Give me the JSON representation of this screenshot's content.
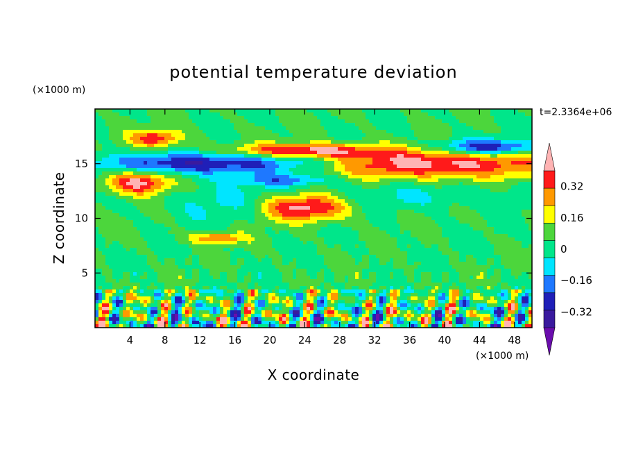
{
  "chart_data": {
    "type": "heatmap",
    "title": "potential temperature deviation",
    "xlabel": "X coordinate",
    "ylabel": "Z coordinate",
    "x_unit": "(×1000 m)",
    "y_unit": "(×1000 m)",
    "time_label": "t=2.3364e+06",
    "xlim": [
      0,
      50
    ],
    "ylim": [
      0,
      20
    ],
    "x_ticks": [
      4,
      8,
      12,
      16,
      20,
      24,
      28,
      32,
      36,
      40,
      44,
      48
    ],
    "y_ticks": [
      5,
      10,
      15
    ],
    "colorbar": {
      "levels": [
        -0.4,
        -0.32,
        -0.24,
        -0.16,
        -0.08,
        0,
        0.08,
        0.16,
        0.24,
        0.32,
        0.4
      ],
      "tick_labels": [
        "0.32",
        "0.16",
        "0",
        "−0.16",
        "−0.32"
      ],
      "tick_values": [
        0.32,
        0.16,
        0,
        -0.16,
        -0.32
      ],
      "colors": [
        "#6a0dad",
        "#3a1a9e",
        "#1f1fb8",
        "#1e78ff",
        "#00e5ff",
        "#00e68a",
        "#4cd63c",
        "#ffff00",
        "#ff9900",
        "#ff1a1a",
        "#ffb3b3"
      ],
      "extend": "both"
    },
    "features": [
      {
        "x": 7,
        "z": 17.3,
        "rx": 3,
        "rz": 0.8,
        "value": 0.3
      },
      {
        "x": 5,
        "z": 13.3,
        "rx": 3.6,
        "rz": 1.1,
        "value": 0.38
      },
      {
        "x": 36,
        "z": 15,
        "rx": 16,
        "rz": 1.3,
        "value": 0.42
      },
      {
        "x": 24,
        "z": 16.2,
        "rx": 8,
        "rz": 0.6,
        "value": 0.33
      },
      {
        "x": 24,
        "z": 11,
        "rx": 5,
        "rz": 1.2,
        "value": 0.36
      },
      {
        "x": 14,
        "z": 8.2,
        "rx": 3,
        "rz": 0.5,
        "value": 0.25
      },
      {
        "x": 16,
        "z": 15,
        "rx": 16,
        "rz": 1.0,
        "value": -0.38
      },
      {
        "x": 45,
        "z": 16.5,
        "rx": 6,
        "rz": 0.7,
        "value": -0.34
      },
      {
        "x": 22,
        "z": 13.5,
        "rx": 6,
        "rz": 0.6,
        "value": -0.2
      },
      {
        "x": 14,
        "z": 11.5,
        "rx": 6,
        "rz": 1.8,
        "value": -0.09
      },
      {
        "x": 36,
        "z": 12,
        "rx": 14,
        "rz": 1.2,
        "value": -0.08
      }
    ],
    "grid": false
  }
}
